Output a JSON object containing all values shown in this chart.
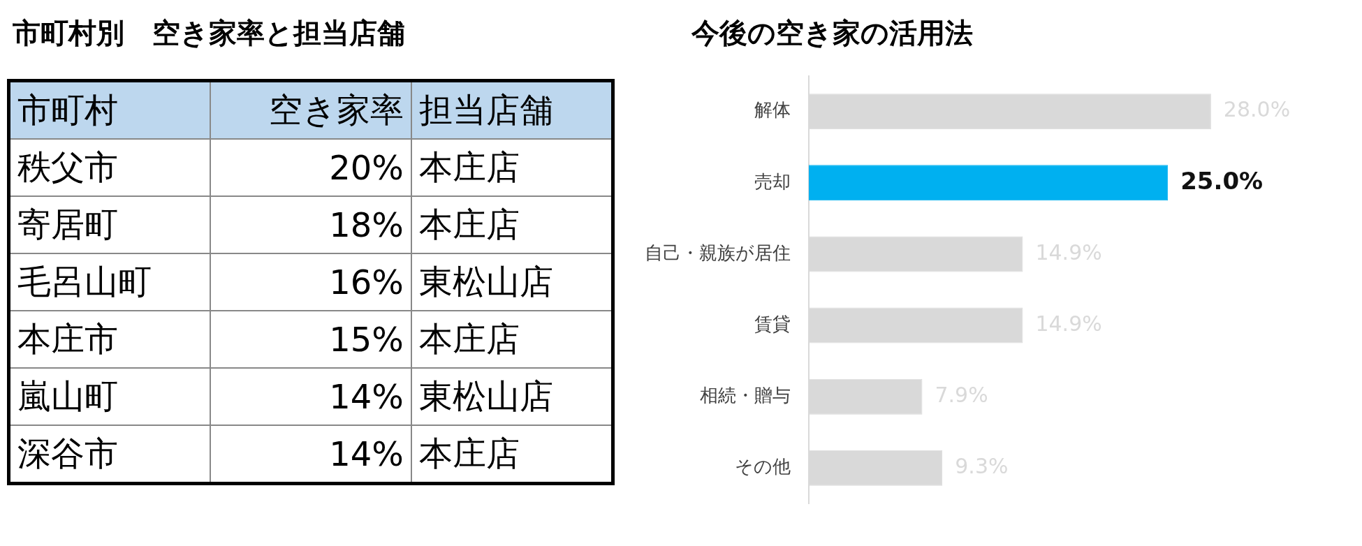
{
  "chart_data": [
    {
      "type": "other",
      "title": "市町村別　空き家率と担当店舗",
      "annotations": [
        "市町村",
        "空き家率",
        "担当店舗",
        "秩父市",
        "20%",
        "本庄店",
        "寄居町",
        "18%",
        "本庄店",
        "毛呂山町",
        "16%",
        "東松山店",
        "本庄市",
        "15%",
        "本庄店",
        "嵐山町",
        "14%",
        "東松山店",
        "深谷市",
        "14%",
        "本庄店"
      ]
    },
    {
      "type": "bar",
      "orientation": "horizontal",
      "title": "今後の空き家の活用法",
      "categories": [
        "解体",
        "売却",
        "自己・親族が居住",
        "賃貸",
        "相続・贈与",
        "その他"
      ],
      "values": [
        28.0,
        25.0,
        14.9,
        14.9,
        7.9,
        9.3
      ],
      "colors": [
        "#d9d9d9",
        "#00b0f0",
        "#d9d9d9",
        "#d9d9d9",
        "#d9d9d9",
        "#d9d9d9"
      ],
      "value_labels": [
        "28.0%",
        "25.0%",
        "14.9%",
        "14.9%",
        "7.9%",
        "9.3%"
      ]
    }
  ]
}
